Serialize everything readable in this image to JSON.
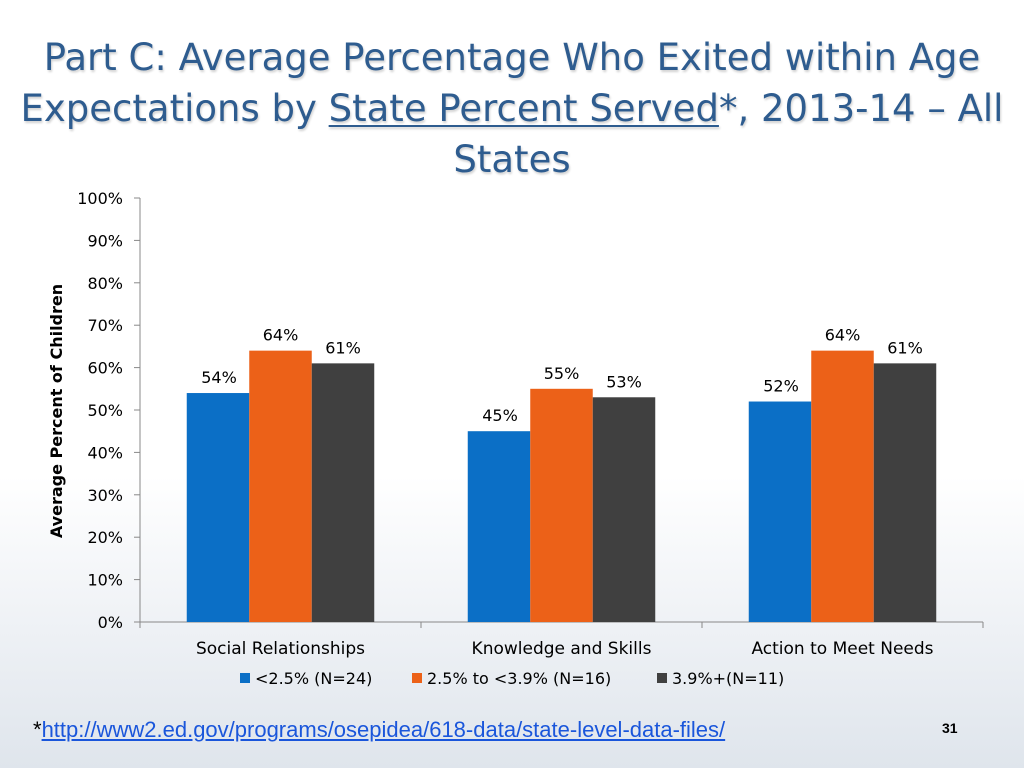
{
  "slide": {
    "title_part1": "Part C: Average Percentage Who Exited within Age Expectations by ",
    "title_underlined": "State Percent Served",
    "title_part2": "*, 2013-14 – All States",
    "footnote_marker": "*",
    "footnote_link": "http://www2.ed.gov/programs/osepidea/618-data/state-level-data-files/",
    "page_number": "31"
  },
  "chart_data": {
    "type": "bar",
    "title": "",
    "xlabel": "",
    "ylabel": "Average Percent of Children",
    "ylim": [
      0,
      100
    ],
    "yticks": [
      0,
      10,
      20,
      30,
      40,
      50,
      60,
      70,
      80,
      90,
      100
    ],
    "ytick_suffix": "%",
    "categories": [
      "Social Relationships",
      "Knowledge and Skills",
      "Action to Meet Needs"
    ],
    "series": [
      {
        "name": "<2.5% (N=24)",
        "color": "#0b6fc6",
        "values": [
          54,
          45,
          52
        ],
        "labels": [
          "54%",
          "45%",
          "52%"
        ]
      },
      {
        "name": "2.5% to <3.9% (N=16)",
        "color": "#ec6118",
        "values": [
          64,
          55,
          64
        ],
        "labels": [
          "64%",
          "55%",
          "64%"
        ]
      },
      {
        "name": "3.9%+(N=11)",
        "color": "#404040",
        "values": [
          61,
          53,
          61
        ],
        "labels": [
          "61%",
          "53%",
          "61%"
        ]
      }
    ],
    "legend_position": "bottom",
    "grid": false
  }
}
